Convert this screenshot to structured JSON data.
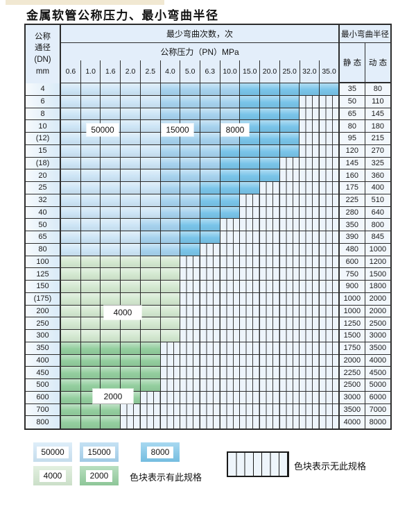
{
  "title": "金属软管公称压力、最小弯曲半径",
  "colors": {
    "b1": "#cde5f6",
    "b2": "#a6d2ee",
    "b3": "#79c4e9",
    "g1": "#d3e8d0",
    "g2": "#93ce9e"
  },
  "band_values": {
    "b1": "50000",
    "b2": "15000",
    "b3": "8000",
    "g1": "4000",
    "g2": "2000"
  },
  "table": {
    "dn_header_lines": [
      "公称",
      "通径",
      "(DN)",
      "mm"
    ],
    "bend_times_label": "最少弯曲次数，次",
    "pressure_label": "公称压力（PN）MPa",
    "pressure_ticks": [
      "0.6",
      "1.0",
      "1.6",
      "2.0",
      "2.5",
      "4.0",
      "5.0",
      "6.3",
      "10.0",
      "15.0",
      "20.0",
      "25.0",
      "32.0",
      "35.0"
    ],
    "radius_label": "最小弯曲半径",
    "static_label": "静 态",
    "dynamic_label": "动 态",
    "rows": [
      {
        "dn": "4",
        "bands": [
          [
            "b1",
            5
          ],
          [
            "b2",
            4
          ],
          [
            "b3",
            5
          ]
        ],
        "static": "35",
        "dynamic": "80"
      },
      {
        "dn": "6",
        "bands": [
          [
            "b1",
            5
          ],
          [
            "b2",
            4
          ],
          [
            "b3",
            3
          ]
        ],
        "static": "50",
        "dynamic": "110"
      },
      {
        "dn": "8",
        "bands": [
          [
            "b1",
            5
          ],
          [
            "b2",
            4
          ],
          [
            "b3",
            3
          ]
        ],
        "static": "65",
        "dynamic": "145"
      },
      {
        "dn": "10",
        "bands": [
          [
            "b1",
            5
          ],
          [
            "b2",
            4
          ],
          [
            "b3",
            3
          ]
        ],
        "static": "80",
        "dynamic": "180"
      },
      {
        "dn": "(12)",
        "bands": [
          [
            "b1",
            5
          ],
          [
            "b2",
            4
          ],
          [
            "b3",
            3
          ]
        ],
        "static": "95",
        "dynamic": "215"
      },
      {
        "dn": "15",
        "bands": [
          [
            "b1",
            5
          ],
          [
            "b2",
            3
          ],
          [
            "b3",
            4
          ]
        ],
        "static": "120",
        "dynamic": "270"
      },
      {
        "dn": "(18)",
        "bands": [
          [
            "b1",
            5
          ],
          [
            "b2",
            3
          ],
          [
            "b3",
            3
          ]
        ],
        "static": "145",
        "dynamic": "325"
      },
      {
        "dn": "20",
        "bands": [
          [
            "b1",
            5
          ],
          [
            "b2",
            3
          ],
          [
            "b3",
            3
          ]
        ],
        "static": "160",
        "dynamic": "360"
      },
      {
        "dn": "25",
        "bands": [
          [
            "b1",
            5
          ],
          [
            "b2",
            2
          ],
          [
            "b3",
            3
          ]
        ],
        "static": "175",
        "dynamic": "400"
      },
      {
        "dn": "32",
        "bands": [
          [
            "b1",
            5
          ],
          [
            "b2",
            2
          ],
          [
            "b3",
            2
          ]
        ],
        "static": "225",
        "dynamic": "510"
      },
      {
        "dn": "40",
        "bands": [
          [
            "b1",
            5
          ],
          [
            "b2",
            2
          ],
          [
            "b3",
            2
          ]
        ],
        "static": "280",
        "dynamic": "640"
      },
      {
        "dn": "50",
        "bands": [
          [
            "b1",
            4
          ],
          [
            "b2",
            2
          ],
          [
            "b3",
            2
          ]
        ],
        "static": "350",
        "dynamic": "800"
      },
      {
        "dn": "65",
        "bands": [
          [
            "b1",
            4
          ],
          [
            "b2",
            2
          ],
          [
            "b3",
            2
          ]
        ],
        "static": "390",
        "dynamic": "845"
      },
      {
        "dn": "80",
        "bands": [
          [
            "b1",
            4
          ],
          [
            "b2",
            2
          ],
          [
            "b3",
            1
          ]
        ],
        "static": "480",
        "dynamic": "1000"
      },
      {
        "dn": "100",
        "bands": [
          [
            "g1",
            6
          ]
        ],
        "static": "600",
        "dynamic": "1200"
      },
      {
        "dn": "125",
        "bands": [
          [
            "g1",
            6
          ]
        ],
        "static": "750",
        "dynamic": "1500"
      },
      {
        "dn": "150",
        "bands": [
          [
            "g1",
            6
          ]
        ],
        "static": "900",
        "dynamic": "1800"
      },
      {
        "dn": "(175)",
        "bands": [
          [
            "g1",
            6
          ]
        ],
        "static": "1000",
        "dynamic": "2000"
      },
      {
        "dn": "200",
        "bands": [
          [
            "g1",
            6
          ]
        ],
        "static": "1000",
        "dynamic": "2000"
      },
      {
        "dn": "250",
        "bands": [
          [
            "g1",
            6
          ]
        ],
        "static": "1250",
        "dynamic": "2500"
      },
      {
        "dn": "300",
        "bands": [
          [
            "g1",
            6
          ]
        ],
        "static": "1500",
        "dynamic": "3000"
      },
      {
        "dn": "350",
        "bands": [
          [
            "g2",
            5
          ]
        ],
        "static": "1750",
        "dynamic": "3500"
      },
      {
        "dn": "400",
        "bands": [
          [
            "g2",
            5
          ]
        ],
        "static": "2000",
        "dynamic": "4000"
      },
      {
        "dn": "450",
        "bands": [
          [
            "g2",
            5
          ]
        ],
        "static": "2250",
        "dynamic": "4500"
      },
      {
        "dn": "500",
        "bands": [
          [
            "g2",
            5
          ]
        ],
        "static": "2500",
        "dynamic": "5000"
      },
      {
        "dn": "600",
        "bands": [
          [
            "g2",
            4
          ]
        ],
        "static": "3000",
        "dynamic": "6000"
      },
      {
        "dn": "700",
        "bands": [
          [
            "g2",
            3
          ]
        ],
        "static": "3500",
        "dynamic": "7000"
      },
      {
        "dn": "800",
        "bands": [
          [
            "g2",
            3
          ]
        ],
        "static": "4000",
        "dynamic": "8000"
      }
    ]
  },
  "overlays": [
    {
      "band": "b1",
      "text": "50000"
    },
    {
      "band": "b2",
      "text": "15000"
    },
    {
      "band": "b3",
      "text": "8000"
    },
    {
      "band": "g1",
      "text": "4000"
    },
    {
      "band": "g2",
      "text": "2000"
    }
  ],
  "legend": {
    "chips": [
      {
        "band": "b1",
        "value": "50000"
      },
      {
        "band": "b2",
        "value": "15000"
      },
      {
        "band": "b3",
        "value": "8000"
      },
      {
        "band": "g1",
        "value": "4000"
      },
      {
        "band": "g2",
        "value": "2000"
      }
    ],
    "has_spec_text": "色块表示有此规格",
    "no_spec_text": "色块表示无此规格"
  }
}
